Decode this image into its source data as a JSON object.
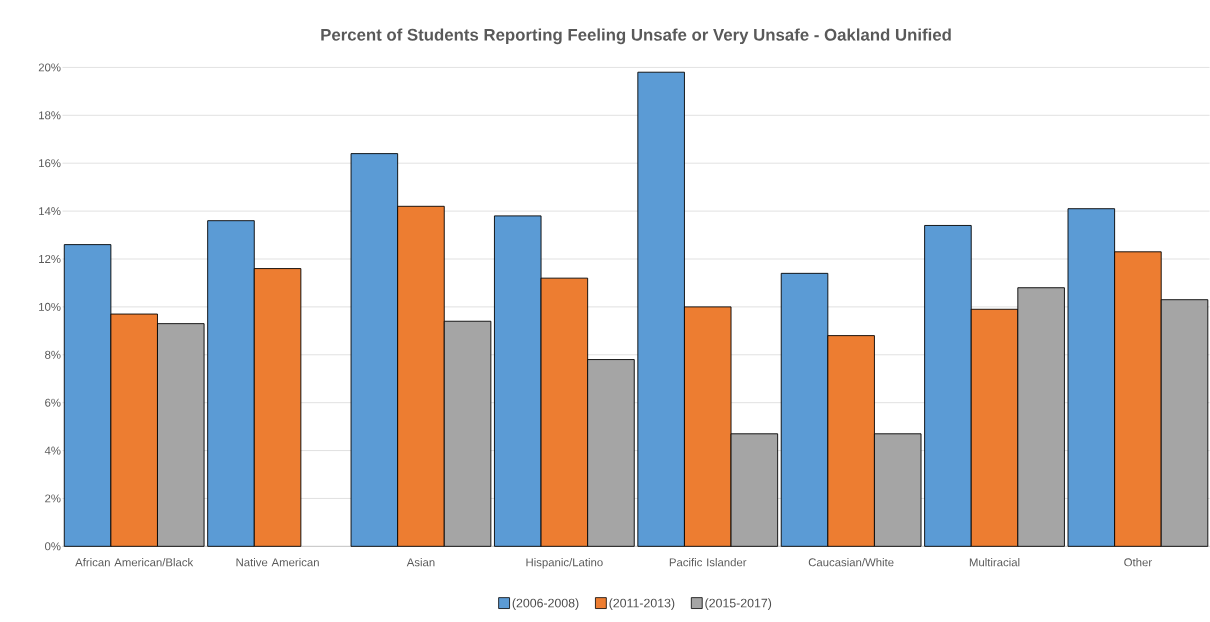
{
  "chart_data": {
    "type": "bar",
    "title": "Percent of Students Reporting Feeling Unsafe or Very Unsafe - Oakland Unified",
    "categories": [
      "African American/Black",
      "Native American",
      "Asian",
      "Hispanic/Latino",
      "Pacific Islander",
      "Caucasian/White",
      "Multiracial",
      "Other"
    ],
    "series": [
      {
        "name": "(2006-2008)",
        "color": "#5b9bd5",
        "values": [
          12.6,
          13.6,
          16.4,
          13.8,
          19.8,
          11.4,
          13.4,
          14.1
        ]
      },
      {
        "name": "(2011-2013)",
        "color": "#ed7d31",
        "values": [
          9.7,
          11.6,
          14.2,
          11.2,
          10.0,
          8.8,
          9.9,
          12.3
        ]
      },
      {
        "name": "(2015-2017)",
        "color": "#a5a5a5",
        "values": [
          9.3,
          null,
          9.4,
          7.8,
          4.7,
          4.7,
          10.8,
          10.3
        ]
      }
    ],
    "ylim": [
      0,
      20
    ],
    "yticks": [
      {
        "value": 0,
        "label": "0%"
      },
      {
        "value": 2,
        "label": "2%"
      },
      {
        "value": 4,
        "label": "4%"
      },
      {
        "value": 6,
        "label": "6%"
      },
      {
        "value": 8,
        "label": "8%"
      },
      {
        "value": 10,
        "label": "10%"
      },
      {
        "value": 12,
        "label": "12%"
      },
      {
        "value": 14,
        "label": "14%"
      },
      {
        "value": 16,
        "label": "16%"
      },
      {
        "value": 18,
        "label": "18%"
      },
      {
        "value": 20,
        "label": "20%"
      }
    ],
    "grid": "y",
    "legend": "bottom"
  }
}
